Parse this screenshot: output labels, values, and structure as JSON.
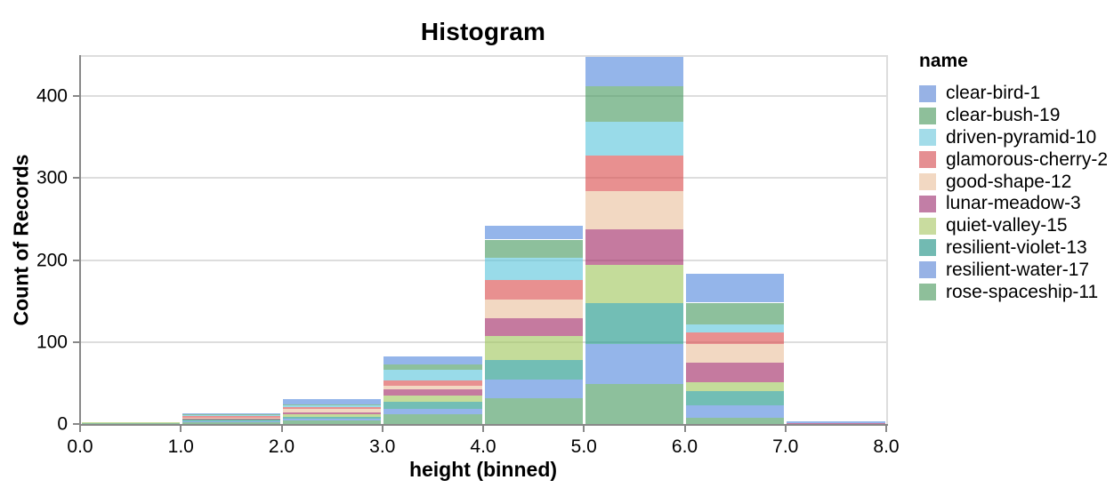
{
  "chart_data": {
    "type": "bar",
    "stacked": true,
    "title": "Histogram",
    "xlabel": "height (binned)",
    "ylabel": "Count of Records",
    "legend_title": "name",
    "xlim": [
      0,
      8
    ],
    "ylim": [
      0,
      450
    ],
    "grid": true,
    "legend_position": "right",
    "bin_edges": [
      0,
      1,
      2,
      3,
      4,
      5,
      6,
      7,
      8
    ],
    "x_tick_labels": [
      "0.0",
      "1.0",
      "2.0",
      "3.0",
      "4.0",
      "5.0",
      "6.0",
      "7.0",
      "8.0"
    ],
    "y_tick_values": [
      0,
      100,
      200,
      300,
      400
    ],
    "bin_totals": [
      2,
      13,
      30,
      82,
      242,
      450,
      183,
      3
    ],
    "stack_order_bottom_to_top": [
      "rose-spaceship-11",
      "resilient-water-17",
      "resilient-violet-13",
      "quiet-valley-15",
      "lunar-meadow-3",
      "good-shape-12",
      "glamorous-cherry-2",
      "driven-pyramid-10",
      "clear-bush-19",
      "clear-bird-1"
    ],
    "series": [
      {
        "name": "clear-bird-1",
        "color": "#97B2E5",
        "fill": "rgba(83,135,221,0.62)",
        "values": [
          0,
          1,
          6,
          9,
          17,
          38,
          35,
          2
        ]
      },
      {
        "name": "clear-bush-19",
        "color": "#8EBF9A",
        "fill": "rgba(71,154,95,0.62)",
        "values": [
          0,
          1,
          1,
          7,
          22,
          43,
          27,
          0
        ]
      },
      {
        "name": "driven-pyramid-10",
        "color": "#A3DCE9",
        "fill": "rgba(91,197,219,0.62)",
        "values": [
          0,
          1,
          2,
          13,
          27,
          42,
          9,
          0
        ]
      },
      {
        "name": "glamorous-cherry-2",
        "color": "#E58F92",
        "fill": "rgba(218,76,76,0.62)",
        "values": [
          0,
          2,
          3,
          6,
          24,
          43,
          14,
          0
        ]
      },
      {
        "name": "good-shape-12",
        "color": "#F2D8C2",
        "fill": "rgba(234,192,156,0.62)",
        "values": [
          0,
          1,
          4,
          5,
          23,
          47,
          23,
          0
        ]
      },
      {
        "name": "lunar-meadow-3",
        "color": "#C27EA6",
        "fill": "rgba(161,40,100,0.62)",
        "values": [
          0,
          1,
          2,
          7,
          22,
          43,
          24,
          1
        ]
      },
      {
        "name": "quiet-valley-15",
        "color": "#C9DC9F",
        "fill": "rgba(160,199,92,0.62)",
        "values": [
          1,
          1,
          3,
          8,
          29,
          46,
          11,
          0
        ]
      },
      {
        "name": "resilient-violet-13",
        "color": "#72BAB2",
        "fill": "rgba(28,150,136,0.62)",
        "values": [
          0,
          2,
          3,
          9,
          24,
          50,
          17,
          0
        ]
      },
      {
        "name": "resilient-water-17",
        "color": "#97B2E5",
        "fill": "rgba(83,135,221,0.62)",
        "values": [
          0,
          1,
          2,
          6,
          23,
          49,
          15,
          0
        ]
      },
      {
        "name": "rose-spaceship-11",
        "color": "#8EBF9A",
        "fill": "rgba(71,154,95,0.62)",
        "values": [
          1,
          2,
          4,
          12,
          31,
          49,
          8,
          0
        ]
      }
    ],
    "colors": {
      "gridline": "#dddddd",
      "axis": "#888888",
      "view_border": "#dddddd",
      "text": "#000000"
    }
  }
}
